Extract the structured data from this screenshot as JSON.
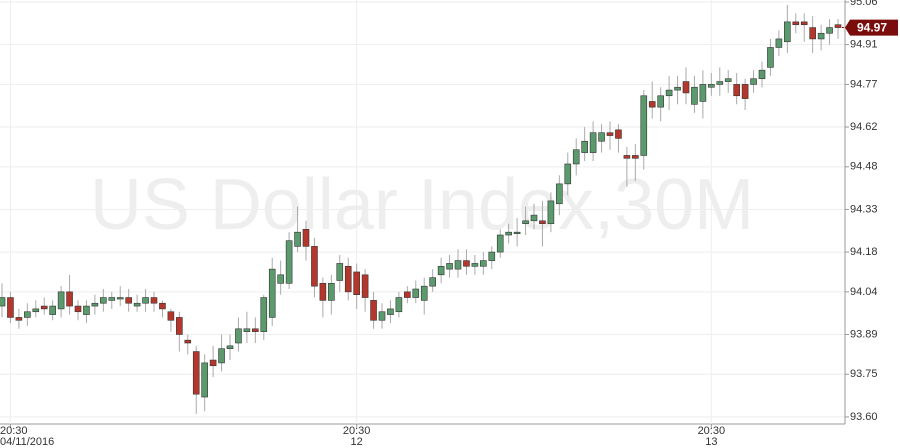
{
  "chart_data": {
    "type": "candlestick",
    "watermark": "US Dollar Index,30M",
    "categories": [
      null,
      "20:30",
      null,
      null,
      null,
      null,
      null,
      null,
      null,
      null,
      null,
      null,
      null,
      null,
      null,
      null,
      null,
      null,
      null,
      null,
      null,
      null,
      null,
      null,
      null,
      null,
      null,
      null,
      null,
      null,
      null,
      null,
      null,
      null,
      null,
      null,
      null,
      null,
      null,
      null,
      null,
      null,
      "20:30",
      null,
      null,
      null,
      null,
      null,
      null,
      null,
      null,
      null,
      null,
      null,
      null,
      null,
      null,
      null,
      null,
      null,
      null,
      null,
      null,
      null,
      null,
      null,
      null,
      null,
      null,
      null,
      null,
      null,
      null,
      null,
      null,
      null,
      null,
      null,
      null,
      null,
      null,
      null,
      null,
      null,
      "20:30",
      null,
      null,
      null,
      null,
      null,
      null,
      null,
      null,
      null,
      null,
      null,
      null,
      null,
      null,
      null
    ],
    "category_dates": [
      null,
      "04/11/2016",
      null,
      null,
      null,
      null,
      null,
      null,
      null,
      null,
      null,
      null,
      null,
      null,
      null,
      null,
      null,
      null,
      null,
      null,
      null,
      null,
      null,
      null,
      null,
      null,
      null,
      null,
      null,
      null,
      null,
      null,
      null,
      null,
      null,
      null,
      null,
      null,
      null,
      null,
      null,
      null,
      "12",
      null,
      null,
      null,
      null,
      null,
      null,
      null,
      null,
      null,
      null,
      null,
      null,
      null,
      null,
      null,
      null,
      null,
      null,
      null,
      null,
      null,
      null,
      null,
      null,
      null,
      null,
      null,
      null,
      null,
      null,
      null,
      null,
      null,
      null,
      null,
      null,
      null,
      null,
      null,
      null,
      null,
      "13",
      null,
      null,
      null,
      null,
      null,
      null,
      null,
      null,
      null,
      null,
      null,
      null,
      null,
      null,
      null
    ],
    "open": [
      93.99,
      94.02,
      93.95,
      93.95,
      93.97,
      93.99,
      93.96,
      93.98,
      94.04,
      93.99,
      93.96,
      93.99,
      94.0,
      94.01,
      94.02,
      94.02,
      93.99,
      94.0,
      94.02,
      94.0,
      93.97,
      93.95,
      93.87,
      93.83,
      93.67,
      93.8,
      93.79,
      93.84,
      93.86,
      93.9,
      93.91,
      93.9,
      93.95,
      94.07,
      94.07,
      94.2,
      94.26,
      94.2,
      94.07,
      94.01,
      94.08,
      94.13,
      94.11,
      94.1,
      94.01,
      93.94,
      93.96,
      93.97,
      94.04,
      94.02,
      94.01,
      94.06,
      94.1,
      94.12,
      94.12,
      94.15,
      94.13,
      94.13,
      94.15,
      94.18,
      94.24,
      94.25,
      94.28,
      94.29,
      94.29,
      94.28,
      94.35,
      94.42,
      94.49,
      94.53,
      94.53,
      94.57,
      94.6,
      94.61,
      94.52,
      94.52,
      94.52,
      94.71,
      94.69,
      94.73,
      94.75,
      94.78,
      94.7,
      94.71,
      94.76,
      94.77,
      94.78,
      94.77,
      94.77,
      94.77,
      94.79,
      94.83,
      94.9,
      94.92,
      94.99,
      94.99,
      94.97,
      94.93,
      94.95,
      94.98
    ],
    "high": [
      94.07,
      94.04,
      93.98,
      94.0,
      94.01,
      94.02,
      94.01,
      94.06,
      94.1,
      94.01,
      94.01,
      94.03,
      94.05,
      94.04,
      94.06,
      94.05,
      94.03,
      94.05,
      94.04,
      94.01,
      93.98,
      93.97,
      93.89,
      93.85,
      93.82,
      93.85,
      93.89,
      93.89,
      93.95,
      93.97,
      93.95,
      94.03,
      94.16,
      94.15,
      94.25,
      94.34,
      94.29,
      94.23,
      94.09,
      94.1,
      94.17,
      94.16,
      94.14,
      94.12,
      94.04,
      94.0,
      94.01,
      94.04,
      94.06,
      94.08,
      94.09,
      94.12,
      94.16,
      94.17,
      94.19,
      94.19,
      94.17,
      94.18,
      94.2,
      94.26,
      94.28,
      94.3,
      94.34,
      94.35,
      94.36,
      94.39,
      94.45,
      94.53,
      94.58,
      94.62,
      94.64,
      94.63,
      94.64,
      94.63,
      94.55,
      94.56,
      94.75,
      94.78,
      94.76,
      94.8,
      94.8,
      94.83,
      94.8,
      94.82,
      94.81,
      94.83,
      94.82,
      94.81,
      94.79,
      94.82,
      94.85,
      94.93,
      94.96,
      95.05,
      95.02,
      95.02,
      95.01,
      94.98,
      95.0,
      95.0
    ],
    "low": [
      93.95,
      93.93,
      93.91,
      93.92,
      93.95,
      93.96,
      93.94,
      93.95,
      93.96,
      93.94,
      93.93,
      93.96,
      93.97,
      93.98,
      93.99,
      93.97,
      93.97,
      93.97,
      93.97,
      93.95,
      93.9,
      93.83,
      93.82,
      93.61,
      93.62,
      93.74,
      93.76,
      93.8,
      93.83,
      93.86,
      93.86,
      93.87,
      93.92,
      94.03,
      94.05,
      94.18,
      94.15,
      94.02,
      93.95,
      93.96,
      94.04,
      94.01,
      93.98,
      93.97,
      93.91,
      93.91,
      93.93,
      93.95,
      94.0,
      94.0,
      93.96,
      94.04,
      94.07,
      94.09,
      94.09,
      94.1,
      94.1,
      94.1,
      94.12,
      94.16,
      94.21,
      94.2,
      94.24,
      94.26,
      94.2,
      94.25,
      94.31,
      94.38,
      94.45,
      94.5,
      94.5,
      94.53,
      94.54,
      94.53,
      94.41,
      94.43,
      94.47,
      94.65,
      94.64,
      94.68,
      94.7,
      94.7,
      94.67,
      94.65,
      94.73,
      94.73,
      94.74,
      94.7,
      94.68,
      94.74,
      94.76,
      94.8,
      94.87,
      94.88,
      94.95,
      94.92,
      94.88,
      94.89,
      94.91,
      94.93
    ],
    "close": [
      94.02,
      93.95,
      93.94,
      93.97,
      93.98,
      93.98,
      93.99,
      94.04,
      93.99,
      93.97,
      93.99,
      94.0,
      94.02,
      94.02,
      94.02,
      94.0,
      94.0,
      94.02,
      94.0,
      93.98,
      93.94,
      93.89,
      93.86,
      93.68,
      93.79,
      93.78,
      93.84,
      93.85,
      93.91,
      93.91,
      93.9,
      94.02,
      94.12,
      94.1,
      94.22,
      94.25,
      94.2,
      94.06,
      94.01,
      94.07,
      94.14,
      94.04,
      94.03,
      94.02,
      93.94,
      93.97,
      93.98,
      94.02,
      94.02,
      94.05,
      94.06,
      94.09,
      94.13,
      94.14,
      94.15,
      94.13,
      94.14,
      94.15,
      94.18,
      94.24,
      94.25,
      94.25,
      94.29,
      94.31,
      94.28,
      94.36,
      94.42,
      94.49,
      94.54,
      94.57,
      94.6,
      94.6,
      94.59,
      94.58,
      94.51,
      94.51,
      94.73,
      94.69,
      94.73,
      94.75,
      94.76,
      94.74,
      94.76,
      94.77,
      94.77,
      94.78,
      94.79,
      94.73,
      94.72,
      94.79,
      94.82,
      94.9,
      94.93,
      94.99,
      94.98,
      94.98,
      94.93,
      94.95,
      94.97,
      94.97
    ],
    "up_color": "#5b9a6c",
    "down_color": "#b5372c",
    "last_price": 94.97,
    "last_price_color": "#7a0c0c",
    "ylim": [
      93.575,
      95.067
    ],
    "yticks": [
      {
        "value": 93.6,
        "label": "93.60"
      },
      93.75,
      93.89,
      94.04,
      94.18,
      94.33,
      94.48,
      94.62,
      94.77,
      94.91,
      95.06
    ],
    "grid": true
  }
}
